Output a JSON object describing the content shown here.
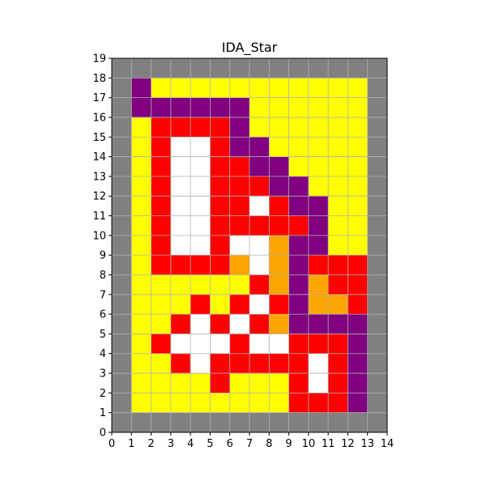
{
  "chart_data": {
    "type": "heatmap",
    "title": "IDA_Star",
    "xlabel": "",
    "ylabel": "",
    "xlim": [
      0,
      14
    ],
    "ylim": [
      0,
      19
    ],
    "x_ticks": [
      "0",
      "1",
      "2",
      "3",
      "4",
      "5",
      "6",
      "7",
      "8",
      "9",
      "10",
      "11",
      "12",
      "13",
      "14"
    ],
    "y_ticks": [
      "0",
      "1",
      "2",
      "3",
      "4",
      "5",
      "6",
      "7",
      "8",
      "9",
      "10",
      "11",
      "12",
      "13",
      "14",
      "15",
      "16",
      "17",
      "18",
      "19"
    ],
    "grid": true,
    "palette": {
      "G": "#808080",
      "Y": "#ffff00",
      "P": "#800080",
      "R": "#ff0000",
      "W": "#ffffff",
      "O": "#ffa500"
    },
    "rows_top_to_bottom": [
      "GGGGGGGGGGGGGG",
      "GPYYYYYYYYYYYG",
      "GPPPPPPYYYYYYG",
      "GYRRRRPYYYYYYG",
      "GYRWWRPPYYYYYG",
      "GYRWWRRPPYYYYG",
      "GYRWWRRRPPYYYG",
      "GYRWWRRWRPPYYG",
      "GYRWWRRRRRPYYG",
      "GYRWWRWWOPPYYG",
      "GYRRRROWOPRRRG",
      "GYYYYYYROPORRG",
      "GYYYRYRWRPOORG",
      "GYYRWRWROPPPPG",
      "GYRWWWRWWRRRPG",
      "GYYRWRRRRRWRPG",
      "GYYYYRYYYRWRPG",
      "GYYYYYYYYRRRPG",
      "GGGGGGGGGGGGGG"
    ]
  }
}
